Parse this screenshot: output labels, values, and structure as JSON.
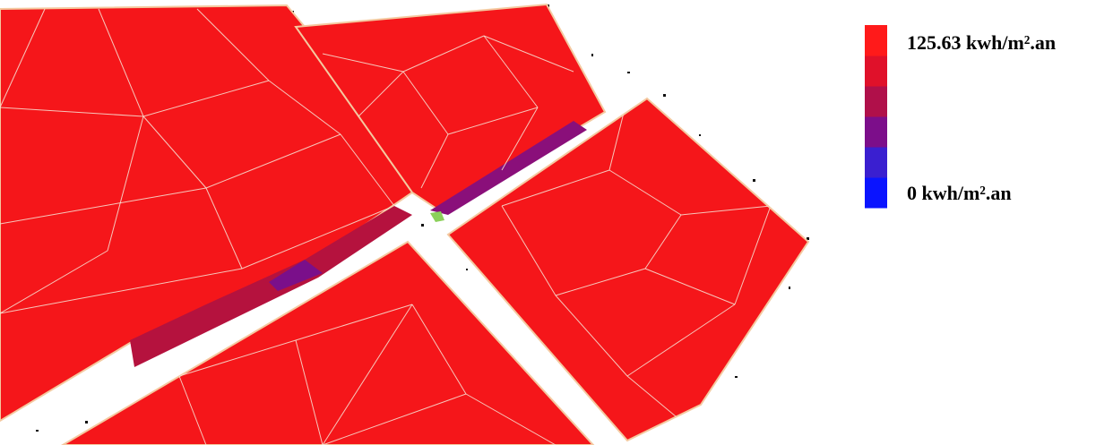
{
  "legend": {
    "max_label": "125.63 kwh/m².an",
    "min_label": "0 kwh/m².an",
    "colors": [
      "#ff1a1a",
      "#e0112a",
      "#b0104a",
      "#7c0e8a",
      "#3a1fd0",
      "#0a14ff"
    ]
  }
}
